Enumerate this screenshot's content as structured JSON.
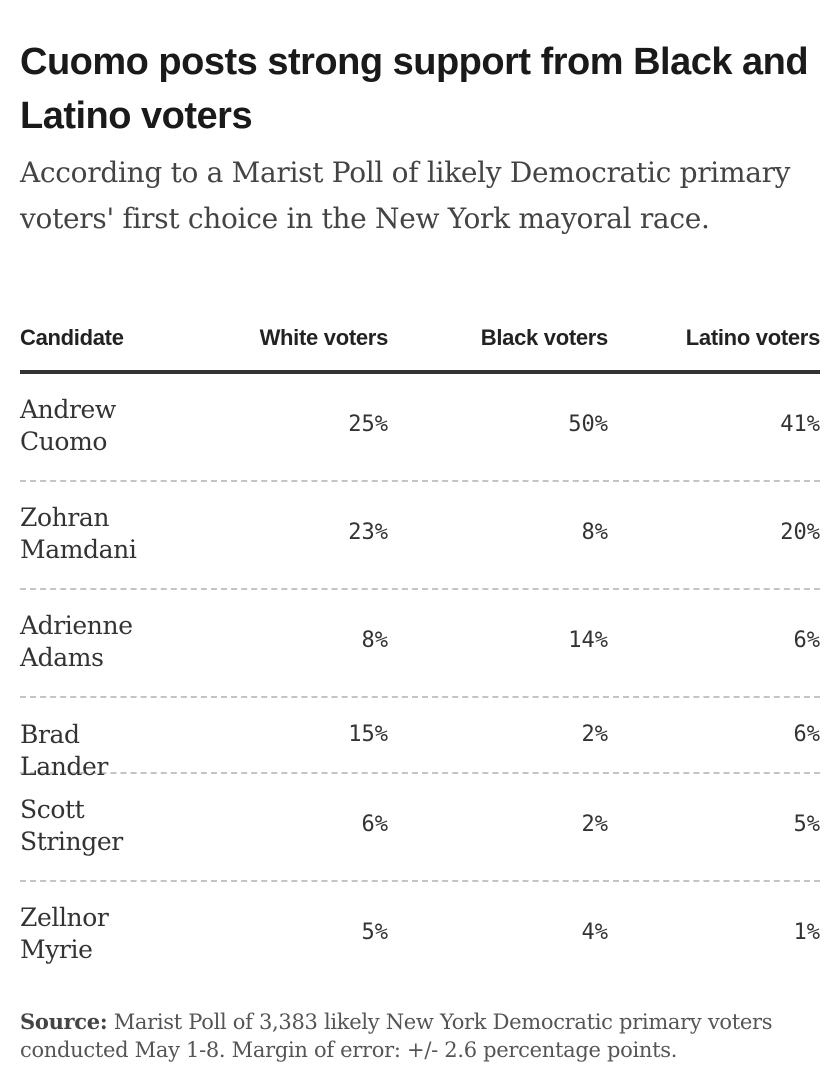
{
  "header": {
    "title": "Cuomo posts strong support from Black and Latino voters",
    "subtitle": "According to a Marist Poll of likely Democratic primary voters' first choice in the New York mayoral race."
  },
  "table": {
    "columns": [
      "Candidate",
      "White voters",
      "Black voters",
      "Latino voters"
    ],
    "rows": [
      {
        "candidate": "Andrew Cuomo",
        "white": "25%",
        "black": "50%",
        "latino": "41%"
      },
      {
        "candidate": "Zohran Mamdani",
        "white": "23%",
        "black": "8%",
        "latino": "20%"
      },
      {
        "candidate": "Adrienne Adams",
        "white": "8%",
        "black": "14%",
        "latino": "6%"
      },
      {
        "candidate": "Brad Lander",
        "white": "15%",
        "black": "2%",
        "latino": "6%"
      },
      {
        "candidate": "Scott Stringer",
        "white": "6%",
        "black": "2%",
        "latino": "5%"
      },
      {
        "candidate": "Zellnor Myrie",
        "white": "5%",
        "black": "4%",
        "latino": "1%"
      }
    ]
  },
  "chart_data": {
    "type": "table",
    "title": "Cuomo posts strong support from Black and Latino voters",
    "subtitle": "According to a Marist Poll of likely Democratic primary voters' first choice in the New York mayoral race.",
    "categories": [
      "Andrew Cuomo",
      "Zohran Mamdani",
      "Adrienne Adams",
      "Brad Lander",
      "Scott Stringer",
      "Zellnor Myrie"
    ],
    "series": [
      {
        "name": "White voters",
        "values": [
          25,
          23,
          8,
          15,
          6,
          5
        ]
      },
      {
        "name": "Black voters",
        "values": [
          50,
          8,
          14,
          2,
          2,
          4
        ]
      },
      {
        "name": "Latino voters",
        "values": [
          41,
          20,
          6,
          6,
          5,
          1
        ]
      }
    ],
    "unit": "%"
  },
  "footer": {
    "source_label": "Source:",
    "source_text": " Marist Poll of 3,383 likely New York Democratic primary voters conducted May 1-8. Margin of error: +/- 2.6 percentage points."
  }
}
